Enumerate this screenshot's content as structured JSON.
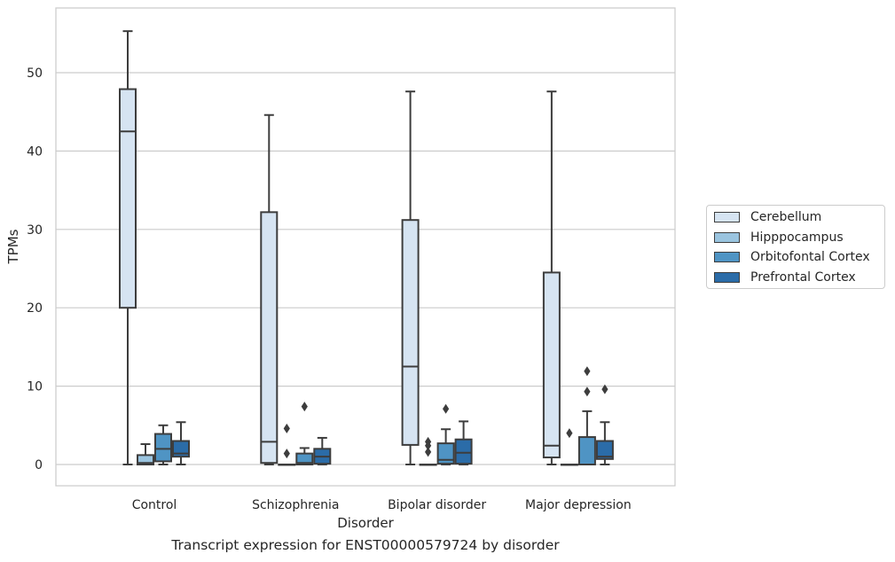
{
  "caption": "Transcript expression for ENST00000579724 by disorder",
  "chart_data": {
    "type": "box",
    "xlabel": "Disorder",
    "ylabel": "TPMs",
    "ylim": [
      -2.7,
      58.2
    ],
    "yticks": [
      0,
      10,
      20,
      30,
      40,
      50
    ],
    "grid": true,
    "legend_position": "right",
    "categories": [
      "Control",
      "Schizophrenia",
      "Bipolar disorder",
      "Major depression"
    ],
    "series": [
      {
        "name": "Cerebellum",
        "color": "#d6e4f2",
        "boxes": [
          {
            "min": 0,
            "q1": 20.0,
            "median": 42.5,
            "q3": 47.9,
            "max": 55.3,
            "outliers": []
          },
          {
            "min": 0,
            "q1": 0.2,
            "median": 2.9,
            "q3": 32.2,
            "max": 44.6,
            "outliers": []
          },
          {
            "min": 0,
            "q1": 2.5,
            "median": 12.5,
            "q3": 31.2,
            "max": 47.6,
            "outliers": []
          },
          {
            "min": 0,
            "q1": 0.9,
            "median": 2.4,
            "q3": 24.5,
            "max": 47.6,
            "outliers": []
          }
        ]
      },
      {
        "name": "Hipppocampus",
        "color": "#9ac4df",
        "boxes": [
          {
            "min": 0,
            "q1": 0,
            "median": 0.2,
            "q3": 1.2,
            "max": 2.6,
            "outliers": []
          },
          {
            "min": 0,
            "q1": 0,
            "median": 0,
            "q3": 0,
            "max": 0,
            "outliers": [
              4.6,
              1.4
            ]
          },
          {
            "min": 0,
            "q1": 0,
            "median": 0,
            "q3": 0,
            "max": 0,
            "outliers": [
              2.9,
              2.4,
              1.6
            ]
          },
          {
            "min": 0,
            "q1": 0,
            "median": 0,
            "q3": 0,
            "max": 0,
            "outliers": [
              4.0
            ]
          }
        ]
      },
      {
        "name": "Orbitofontal Cortex",
        "color": "#4f94c4",
        "boxes": [
          {
            "min": 0,
            "q1": 0.4,
            "median": 2.0,
            "q3": 3.9,
            "max": 5.0,
            "outliers": []
          },
          {
            "min": 0,
            "q1": 0,
            "median": 0.2,
            "q3": 1.4,
            "max": 2.1,
            "outliers": [
              7.4
            ]
          },
          {
            "min": 0,
            "q1": 0.1,
            "median": 0.6,
            "q3": 2.7,
            "max": 4.5,
            "outliers": [
              7.1
            ]
          },
          {
            "min": 0,
            "q1": 0,
            "median": 0,
            "q3": 3.5,
            "max": 6.8,
            "outliers": [
              11.9,
              9.3
            ]
          }
        ]
      },
      {
        "name": "Prefrontal Cortex",
        "color": "#2b6ca8",
        "boxes": [
          {
            "min": 0,
            "q1": 1.0,
            "median": 1.4,
            "q3": 3.0,
            "max": 5.4,
            "outliers": []
          },
          {
            "min": 0,
            "q1": 0.1,
            "median": 1.0,
            "q3": 2.0,
            "max": 3.4,
            "outliers": []
          },
          {
            "min": 0,
            "q1": 0.1,
            "median": 1.5,
            "q3": 3.2,
            "max": 5.5,
            "outliers": []
          },
          {
            "min": 0,
            "q1": 0.7,
            "median": 1.0,
            "q3": 3.0,
            "max": 5.4,
            "outliers": [
              9.6
            ]
          }
        ]
      }
    ]
  }
}
